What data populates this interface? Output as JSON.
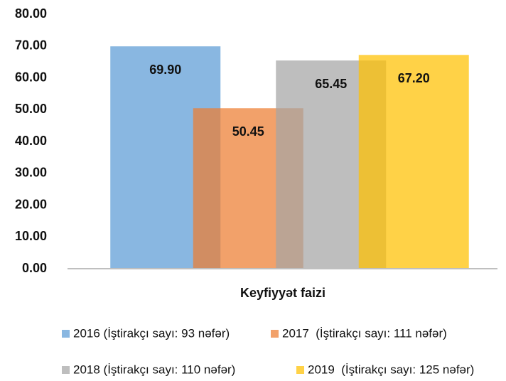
{
  "chart_data": {
    "type": "bar",
    "categories": [
      "Keyfiyyət faizi"
    ],
    "x_label": "Keyfiyyət faizi",
    "series": [
      {
        "name": "2016 (İştirakçı sayı: 93 nəfər)",
        "color": "#5b9bd5",
        "values": [
          69.9
        ],
        "value_labels": [
          "69.90"
        ]
      },
      {
        "name": "2017  (İştirakçı sayı: 111 nəfər)",
        "color": "#ed7d31",
        "values": [
          50.45
        ],
        "value_labels": [
          "50.45"
        ]
      },
      {
        "name": "2018 (İştirakçı sayı: 110 nəfər)",
        "color": "#a5a5a5",
        "values": [
          65.45
        ],
        "value_labels": [
          "65.45"
        ]
      },
      {
        "name": "2019  (İştirakçı sayı: 125 nəfər)",
        "color": "#ffc000",
        "values": [
          67.2
        ],
        "value_labels": [
          "67.20"
        ]
      }
    ],
    "ylim": [
      0,
      80
    ],
    "yticks": [
      {
        "value": 0,
        "label": "0.00"
      },
      {
        "value": 10,
        "label": "10.00"
      },
      {
        "value": 20,
        "label": "20.00"
      },
      {
        "value": 30,
        "label": "30.00"
      },
      {
        "value": 40,
        "label": "40.00"
      },
      {
        "value": 50,
        "label": "50.00"
      },
      {
        "value": 60,
        "label": "60.00"
      },
      {
        "value": 70,
        "label": "70.00"
      },
      {
        "value": 80,
        "label": "80.00"
      }
    ],
    "grid": false,
    "legend": "bottom"
  }
}
